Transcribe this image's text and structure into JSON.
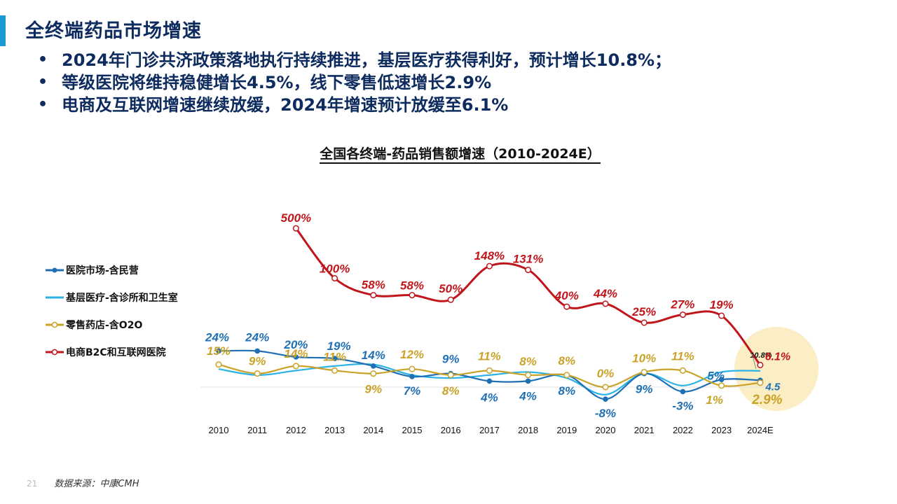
{
  "page": {
    "title": "全终端药品市场增速",
    "bullets": [
      "2024年门诊共济政策落地执行持续推进，基层医疗获得利好，预计增长10.8%；",
      "等级医院将维持稳健增长4.5%，线下零售低速增长2.9%",
      "电商及互联网增速继续放缓，2024年增速预计放缓至6.1%"
    ],
    "page_number": "21",
    "source": "数据来源：中康CMH"
  },
  "chart_data": {
    "type": "line",
    "title": "全国各终端-药品销售额增速（2010-2024E）",
    "categories": [
      "2010",
      "2011",
      "2012",
      "2013",
      "2014",
      "2015",
      "2016",
      "2017",
      "2018",
      "2019",
      "2020",
      "2021",
      "2022",
      "2023",
      "2024E"
    ],
    "series": [
      {
        "name": "医院市场-含民营",
        "color": "#1f6fb5",
        "marker": "filled",
        "values": [
          24,
          24,
          20,
          19,
          14,
          7,
          9,
          4,
          4,
          8,
          -8,
          9,
          -3,
          5,
          4.5
        ],
        "labels": [
          "24%",
          "24%",
          "20%",
          "19%",
          "14%",
          "7%",
          "9%",
          "4%",
          "4%",
          "8%",
          "-8%",
          "9%",
          "-3%",
          "5%",
          "4.5"
        ]
      },
      {
        "name": "基层医疗-含诊所和卫生室",
        "color": "#2bb3e6",
        "marker": "none",
        "values": [
          12,
          8,
          11,
          14,
          15,
          8,
          6,
          8,
          10,
          6,
          -5,
          9,
          1,
          10,
          10.8
        ],
        "labels": [
          null,
          null,
          null,
          null,
          null,
          null,
          null,
          null,
          null,
          null,
          null,
          null,
          null,
          null,
          "10.8%"
        ]
      },
      {
        "name": "零售药店-含O2O",
        "color": "#c9a227",
        "marker": "open",
        "values": [
          15,
          9,
          14,
          11,
          9,
          12,
          8,
          11,
          8,
          8,
          0,
          10,
          11,
          1,
          2.9
        ],
        "labels": [
          "15%",
          "9%",
          "14%",
          "11%",
          "9%",
          "12%",
          "8%",
          "11%",
          "8%",
          "8%",
          "0%",
          "10%",
          "11%",
          "1%",
          "2.9%"
        ]
      },
      {
        "name": "电商B2C和互联网医院",
        "color": "#c0161b",
        "marker": "open",
        "values": [
          null,
          null,
          500,
          100,
          58,
          58,
          50,
          148,
          131,
          40,
          44,
          25,
          27,
          19,
          6.1
        ],
        "labels": [
          null,
          null,
          "500%",
          "100%",
          "58%",
          "58%",
          "50%",
          "148%",
          "131%",
          "40%",
          "44%",
          "25%",
          "27%",
          "19%",
          "6.1%"
        ]
      }
    ]
  }
}
